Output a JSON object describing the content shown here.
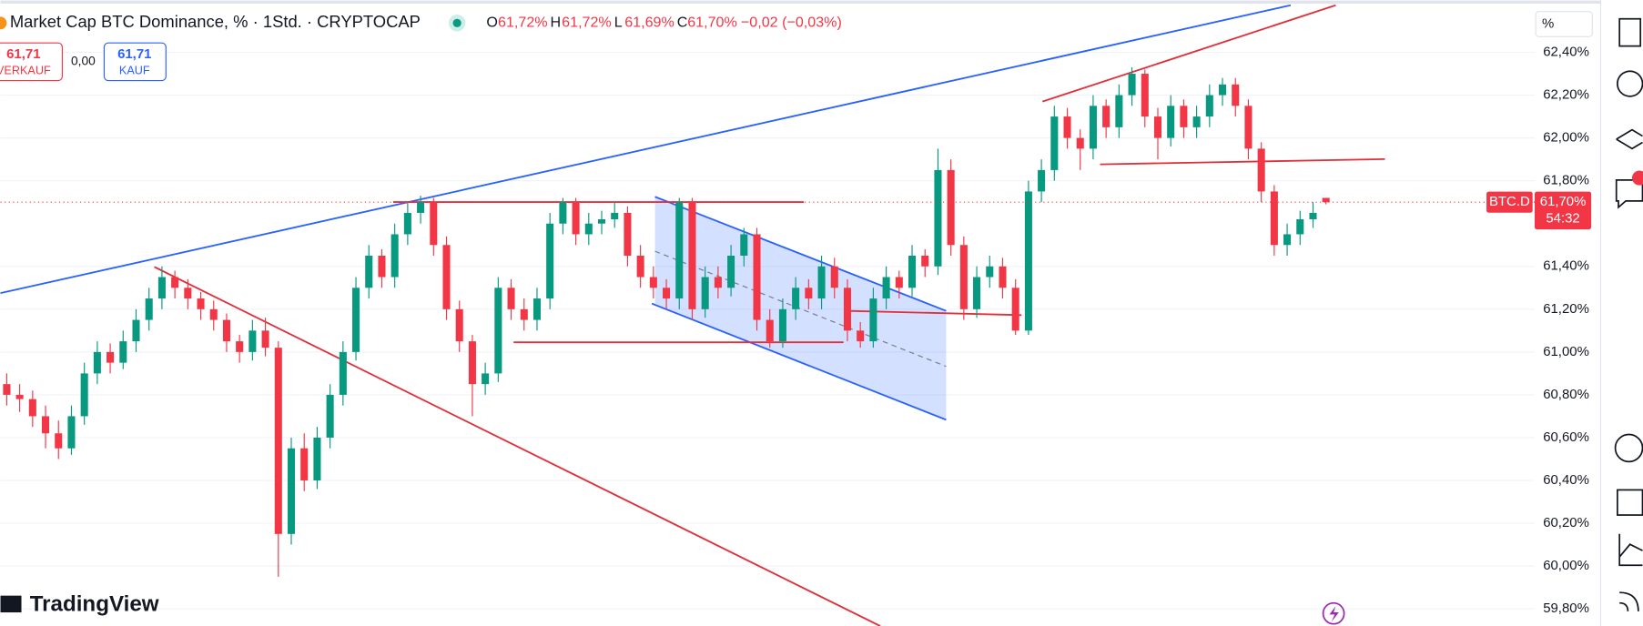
{
  "header": {
    "title": "Market Cap BTC Dominance, % · 1Std. · CRYPTOCAP",
    "o_key": "O",
    "o": "61,72%",
    "h_key": "H",
    "h": "61,72%",
    "l_key": "L",
    "l": "61,69%",
    "c_key": "C",
    "c": "61,70%",
    "change": "−0,02 (−0,03%)"
  },
  "trade": {
    "sell_price": "61,71",
    "sell": "VERKAUF",
    "spread": "0,00",
    "buy_price": "61,71",
    "buy": "KAUF"
  },
  "axis_unit": "%",
  "price_tag": {
    "symbol": "BTC.D",
    "price": "61,70%",
    "countdown": "54:32"
  },
  "brand": "TradingView",
  "chart_data": {
    "type": "candlestick",
    "up_color": "#089981",
    "down_color": "#f23645",
    "ylim": [
      59.72,
      62.62
    ],
    "yticks": [
      {
        "value": 62.4,
        "label": "62,40%"
      },
      {
        "value": 62.2,
        "label": "62,20%"
      },
      {
        "value": 62.0,
        "label": "62,00%"
      },
      {
        "value": 61.8,
        "label": "61,80%"
      },
      {
        "value": 61.4,
        "label": "61,40%"
      },
      {
        "value": 61.2,
        "label": "61,20%"
      },
      {
        "value": 61.0,
        "label": "61,00%"
      },
      {
        "value": 60.8,
        "label": "60,80%"
      },
      {
        "value": 60.6,
        "label": "60,60%"
      },
      {
        "value": 60.4,
        "label": "60,40%"
      },
      {
        "value": 60.2,
        "label": "60,20%"
      },
      {
        "value": 60.0,
        "label": "60,00%"
      },
      {
        "value": 59.8,
        "label": "59,80%"
      }
    ],
    "ohlc": [
      [
        60.85,
        60.9,
        60.75,
        60.8
      ],
      [
        60.8,
        60.85,
        60.72,
        60.78
      ],
      [
        60.78,
        60.82,
        60.65,
        60.7
      ],
      [
        60.7,
        60.75,
        60.55,
        60.62
      ],
      [
        60.62,
        60.68,
        60.5,
        60.55
      ],
      [
        60.55,
        60.75,
        60.52,
        60.7
      ],
      [
        60.7,
        60.95,
        60.66,
        60.9
      ],
      [
        60.9,
        61.05,
        60.85,
        61.0
      ],
      [
        61.0,
        61.04,
        60.9,
        60.95
      ],
      [
        60.95,
        61.1,
        60.92,
        61.05
      ],
      [
        61.05,
        61.2,
        61.0,
        61.15
      ],
      [
        61.15,
        61.3,
        61.1,
        61.25
      ],
      [
        61.25,
        61.4,
        61.2,
        61.35
      ],
      [
        61.35,
        61.38,
        61.25,
        61.3
      ],
      [
        61.3,
        61.34,
        61.2,
        61.25
      ],
      [
        61.25,
        61.28,
        61.15,
        61.2
      ],
      [
        61.2,
        61.24,
        61.1,
        61.15
      ],
      [
        61.15,
        61.18,
        61.0,
        61.05
      ],
      [
        61.05,
        61.08,
        60.95,
        61.0
      ],
      [
        61.0,
        61.15,
        60.96,
        61.1
      ],
      [
        61.1,
        61.16,
        60.98,
        61.02
      ],
      [
        61.02,
        61.05,
        59.95,
        60.15
      ],
      [
        60.15,
        60.6,
        60.1,
        60.55
      ],
      [
        60.55,
        60.62,
        60.35,
        60.4
      ],
      [
        60.4,
        60.65,
        60.36,
        60.6
      ],
      [
        60.6,
        60.85,
        60.55,
        60.8
      ],
      [
        60.8,
        61.05,
        60.75,
        61.0
      ],
      [
        61.0,
        61.35,
        60.96,
        61.3
      ],
      [
        61.3,
        61.5,
        61.25,
        61.45
      ],
      [
        61.45,
        61.48,
        61.3,
        61.35
      ],
      [
        61.35,
        61.6,
        61.3,
        61.55
      ],
      [
        61.55,
        61.7,
        61.5,
        61.65
      ],
      [
        61.65,
        61.73,
        61.6,
        61.7
      ],
      [
        61.7,
        61.72,
        61.45,
        61.5
      ],
      [
        61.5,
        61.54,
        61.15,
        61.2
      ],
      [
        61.2,
        61.24,
        61.0,
        61.05
      ],
      [
        61.05,
        61.08,
        60.7,
        60.85
      ],
      [
        60.85,
        60.95,
        60.8,
        60.9
      ],
      [
        60.9,
        61.35,
        60.86,
        61.3
      ],
      [
        61.3,
        61.34,
        61.15,
        61.2
      ],
      [
        61.2,
        61.25,
        61.1,
        61.15
      ],
      [
        61.15,
        61.3,
        61.1,
        61.25
      ],
      [
        61.25,
        61.65,
        61.2,
        61.6
      ],
      [
        61.6,
        61.72,
        61.55,
        61.7
      ],
      [
        61.7,
        61.72,
        61.5,
        61.55
      ],
      [
        61.55,
        61.65,
        61.5,
        61.6
      ],
      [
        61.6,
        61.66,
        61.55,
        61.62
      ],
      [
        61.62,
        61.7,
        61.58,
        61.65
      ],
      [
        61.65,
        61.68,
        61.4,
        61.45
      ],
      [
        61.45,
        61.5,
        61.3,
        61.35
      ],
      [
        61.35,
        61.4,
        61.25,
        61.3
      ],
      [
        61.3,
        61.34,
        61.2,
        61.25
      ],
      [
        61.25,
        61.72,
        61.2,
        61.7
      ],
      [
        61.7,
        61.72,
        61.15,
        61.2
      ],
      [
        61.2,
        61.4,
        61.16,
        61.35
      ],
      [
        61.35,
        61.4,
        61.25,
        61.3
      ],
      [
        61.3,
        61.5,
        61.26,
        61.45
      ],
      [
        61.45,
        61.58,
        61.4,
        61.55
      ],
      [
        61.55,
        61.58,
        61.1,
        61.15
      ],
      [
        61.15,
        61.2,
        61.02,
        61.05
      ],
      [
        61.05,
        61.25,
        61.02,
        61.2
      ],
      [
        61.2,
        61.35,
        61.15,
        61.3
      ],
      [
        61.3,
        61.34,
        61.2,
        61.25
      ],
      [
        61.25,
        61.45,
        61.2,
        61.4
      ],
      [
        61.4,
        61.44,
        61.25,
        61.3
      ],
      [
        61.3,
        61.34,
        61.05,
        61.1
      ],
      [
        61.1,
        61.14,
        61.02,
        61.05
      ],
      [
        61.05,
        61.3,
        61.02,
        61.25
      ],
      [
        61.25,
        61.4,
        61.2,
        61.35
      ],
      [
        61.35,
        61.38,
        61.25,
        61.3
      ],
      [
        61.3,
        61.5,
        61.26,
        61.45
      ],
      [
        61.45,
        61.48,
        61.35,
        61.4
      ],
      [
        61.4,
        61.95,
        61.36,
        61.85
      ],
      [
        61.85,
        61.9,
        61.45,
        61.5
      ],
      [
        61.5,
        61.54,
        61.15,
        61.2
      ],
      [
        61.2,
        61.4,
        61.16,
        61.35
      ],
      [
        61.35,
        61.45,
        61.3,
        61.4
      ],
      [
        61.4,
        61.44,
        61.25,
        61.3
      ],
      [
        61.3,
        61.34,
        61.08,
        61.1
      ],
      [
        61.1,
        61.8,
        61.08,
        61.75
      ],
      [
        61.75,
        61.9,
        61.7,
        61.85
      ],
      [
        61.85,
        62.15,
        61.8,
        62.1
      ],
      [
        62.1,
        62.14,
        61.95,
        62.0
      ],
      [
        62.0,
        62.04,
        61.85,
        61.95
      ],
      [
        61.95,
        62.2,
        61.9,
        62.15
      ],
      [
        62.15,
        62.18,
        62.0,
        62.05
      ],
      [
        62.05,
        62.25,
        62.0,
        62.2
      ],
      [
        62.2,
        62.33,
        62.15,
        62.3
      ],
      [
        62.3,
        62.32,
        62.05,
        62.1
      ],
      [
        62.1,
        62.14,
        61.9,
        62.0
      ],
      [
        62.0,
        62.2,
        61.96,
        62.15
      ],
      [
        62.15,
        62.18,
        62.0,
        62.05
      ],
      [
        62.05,
        62.15,
        62.0,
        62.1
      ],
      [
        62.1,
        62.25,
        62.05,
        62.2
      ],
      [
        62.2,
        62.28,
        62.15,
        62.25
      ],
      [
        62.25,
        62.28,
        62.1,
        62.15
      ],
      [
        62.15,
        62.18,
        61.9,
        61.95
      ],
      [
        61.95,
        61.98,
        61.7,
        61.75
      ],
      [
        61.75,
        61.78,
        61.45,
        61.5
      ],
      [
        61.5,
        61.6,
        61.45,
        61.55
      ],
      [
        61.55,
        61.66,
        61.5,
        61.62
      ],
      [
        61.62,
        61.7,
        61.58,
        61.65
      ],
      [
        61.72,
        61.72,
        61.69,
        61.7
      ]
    ]
  }
}
